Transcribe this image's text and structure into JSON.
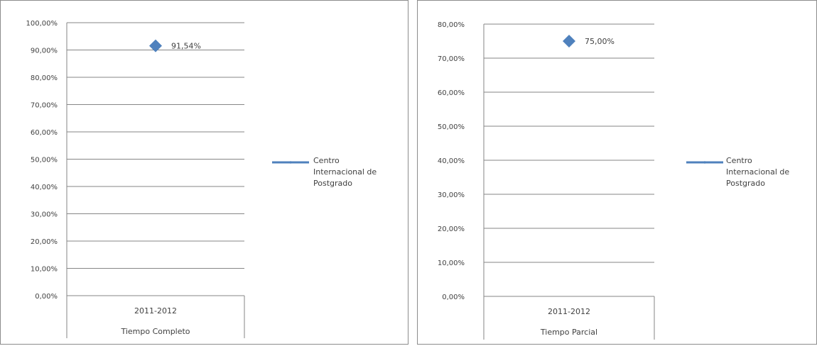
{
  "colors": {
    "series": "#4f81bd",
    "grid": "#868686",
    "text": "#404040"
  },
  "chart_data": [
    {
      "type": "line",
      "title": "",
      "xlabel": "",
      "ylabel": "",
      "grid": true,
      "legend_position": "right",
      "ylim": [
        0,
        1
      ],
      "yticks": [
        0,
        0.1,
        0.2,
        0.3,
        0.4,
        0.5,
        0.6,
        0.7,
        0.8,
        0.9,
        1.0
      ],
      "ytick_labels": [
        "0,00%",
        "10,00%",
        "20,00%",
        "30,00%",
        "40,00%",
        "50,00%",
        "60,00%",
        "70,00%",
        "80,00%",
        "90,00%",
        "100,00%"
      ],
      "categories": [
        "2011-2012"
      ],
      "group_label": "Tiempo Completo",
      "series": [
        {
          "name": "Centro Internacional de Postgrado",
          "name_lines": [
            "Centro",
            "Internacional de",
            "Postgrado"
          ],
          "values": [
            0.9154
          ],
          "data_labels": [
            "91,54%"
          ]
        }
      ]
    },
    {
      "type": "line",
      "title": "",
      "xlabel": "",
      "ylabel": "",
      "grid": true,
      "legend_position": "right",
      "ylim": [
        0,
        0.8
      ],
      "yticks": [
        0,
        0.1,
        0.2,
        0.3,
        0.4,
        0.5,
        0.6,
        0.7,
        0.8
      ],
      "ytick_labels": [
        "0,00%",
        "10,00%",
        "20,00%",
        "30,00%",
        "40,00%",
        "50,00%",
        "60,00%",
        "70,00%",
        "80,00%"
      ],
      "categories": [
        "2011-2012"
      ],
      "group_label": "Tiempo Parcial",
      "series": [
        {
          "name": "Centro Internacional de Postgrado",
          "name_lines": [
            "Centro",
            "Internacional de",
            "Postgrado"
          ],
          "values": [
            0.75
          ],
          "data_labels": [
            "75,00%"
          ]
        }
      ]
    }
  ]
}
